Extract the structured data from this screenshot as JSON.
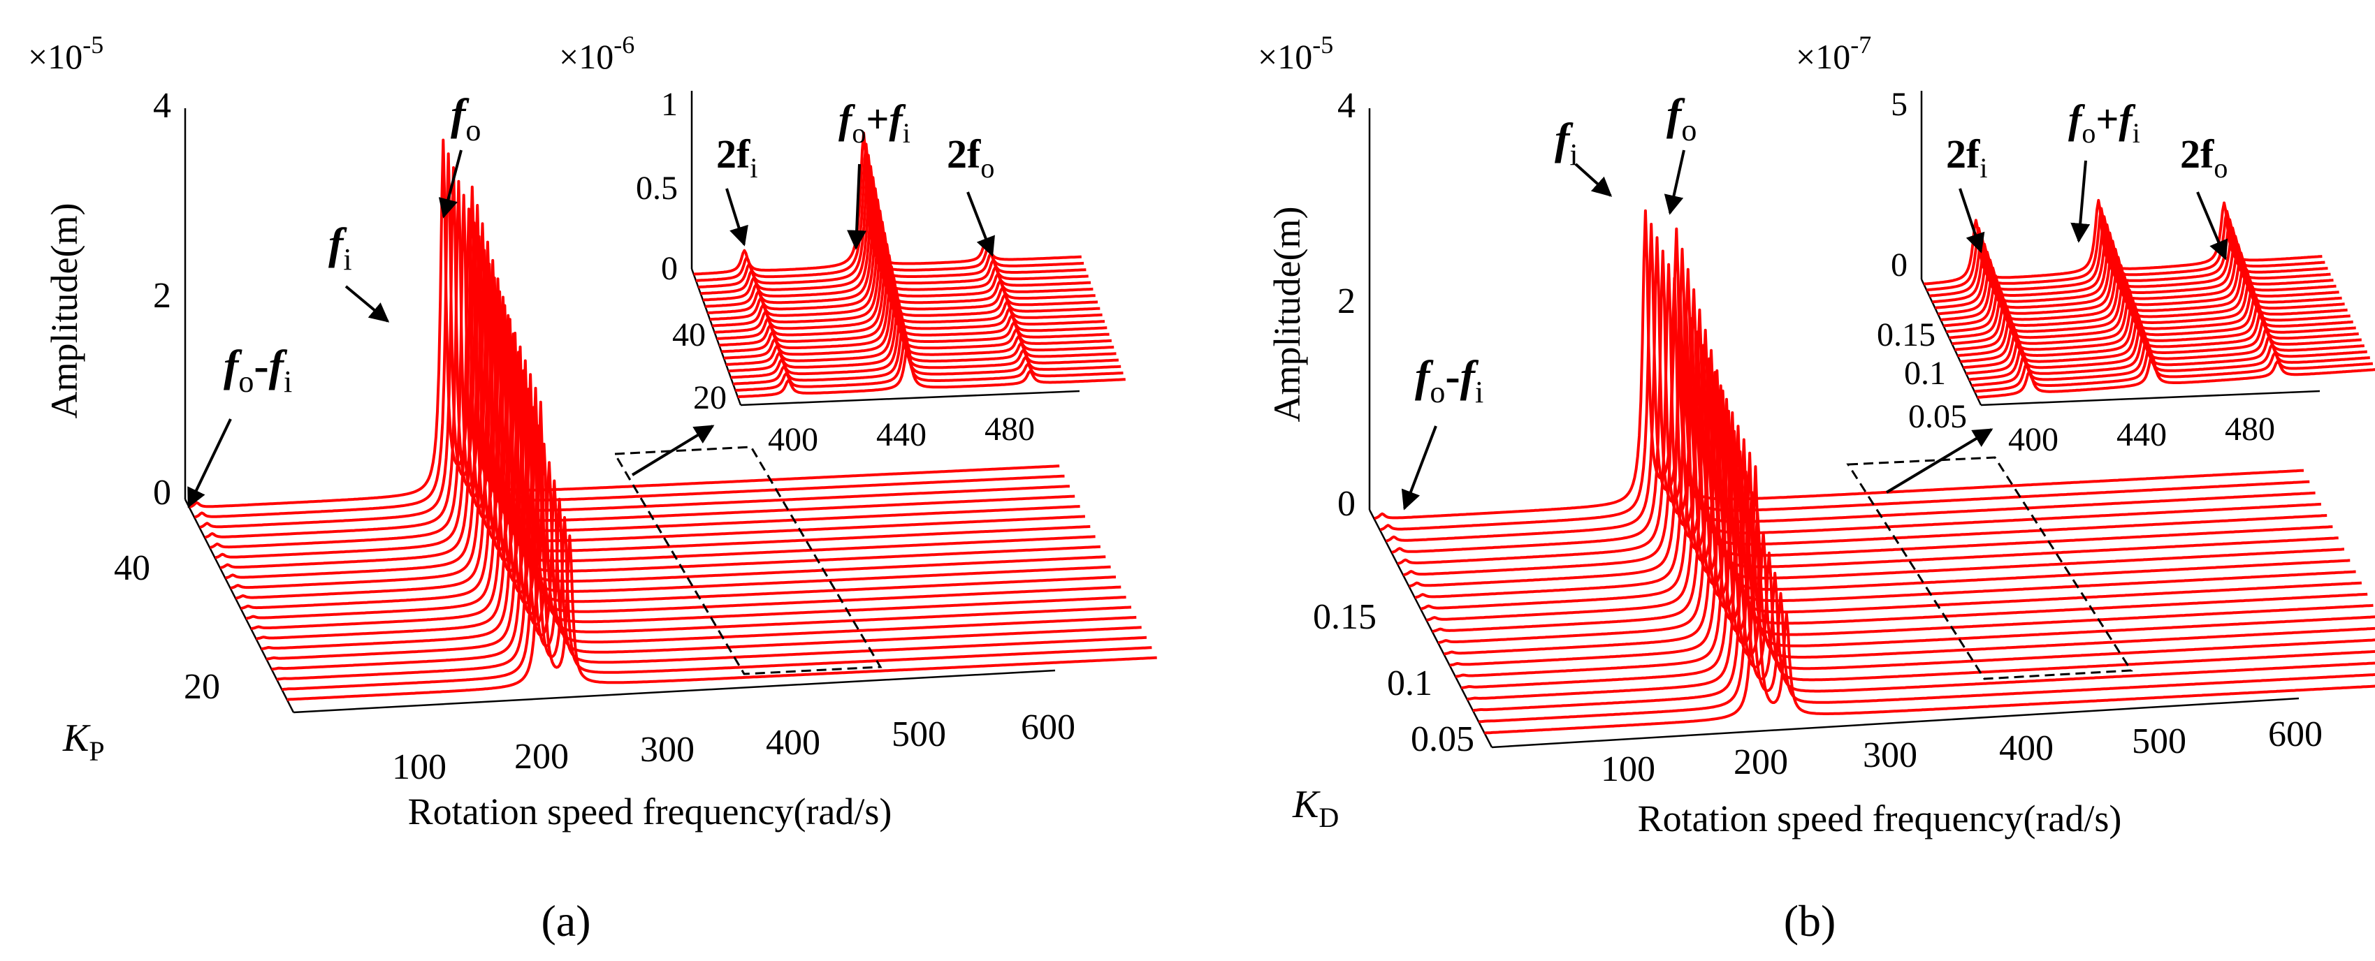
{
  "chart_data": [
    {
      "type": "line",
      "panel_label": "(a)",
      "variant": "a",
      "title": "",
      "xlabel": "Rotation speed frequency(rad/s)",
      "ylabel": "Amplitude(m)",
      "zlabel": "K",
      "zlabel_sub": "P",
      "exponent": "×10-5",
      "exponent_base": "×10",
      "exponent_power": "-5",
      "x_ticks": [
        "100",
        "200",
        "300",
        "400",
        "500",
        "600"
      ],
      "y_ticks": [
        "0",
        "2",
        "4"
      ],
      "z_ticks": [
        "20",
        "40"
      ],
      "xlim": [
        0,
        600
      ],
      "ylim": [
        0,
        4
      ],
      "zlim": [
        10,
        60
      ],
      "series_count": 20,
      "peaks": [
        {
          "name": "fo-fi",
          "x": 5,
          "amplitude_range": [
            0.0,
            0.05
          ]
        },
        {
          "name": "fi",
          "x": 175,
          "amplitude_range": [
            2.9,
            3.6
          ]
        },
        {
          "name": "fo",
          "x": 195,
          "amplitude_range": [
            1.5,
            3.1
          ]
        }
      ],
      "annotations": {
        "fi_main": "f",
        "fi_sub": "i",
        "fo_main": "f",
        "fo_sub": "o",
        "diff_main1": "f",
        "diff_sub1": "o",
        "diff_op": "-",
        "diff_main2": "f",
        "diff_sub2": "i"
      },
      "inset": {
        "exponent_base": "×10",
        "exponent_power": "-6",
        "x_ticks": [
          "400",
          "440",
          "480"
        ],
        "y_ticks": [
          "0",
          "0.5",
          "1"
        ],
        "z_ticks": [
          "20",
          "40"
        ],
        "xlim": [
          370,
          500
        ],
        "ylim": [
          0,
          1
        ],
        "peaks": [
          {
            "name": "2fi",
            "x": 387,
            "amplitude_range": [
              0.08,
              0.12
            ]
          },
          {
            "name": "fo+fi",
            "x": 427,
            "amplitude_range": [
              0.25,
              0.75
            ]
          },
          {
            "name": "2fo",
            "x": 468,
            "amplitude_range": [
              0.07,
              0.12
            ]
          }
        ],
        "annotations": {
          "twofi_num": "2f",
          "twofi_sub": "i",
          "sum_main1": "f",
          "sum_sub1": "o",
          "sum_op": "+",
          "sum_main2": "f",
          "sum_sub2": "i",
          "twofo_num": "2f",
          "twofo_sub": "o"
        }
      }
    },
    {
      "type": "line",
      "panel_label": "(b)",
      "variant": "b",
      "title": "",
      "xlabel": "Rotation speed frequency(rad/s)",
      "ylabel": "Amplitude(m)",
      "zlabel": "K",
      "zlabel_sub": "D",
      "exponent": "×10-5",
      "exponent_base": "×10",
      "exponent_power": "-5",
      "x_ticks": [
        "100",
        "200",
        "300",
        "400",
        "500",
        "600"
      ],
      "y_ticks": [
        "0",
        "2",
        "4"
      ],
      "z_ticks": [
        "0.05",
        "0.1",
        "0.15"
      ],
      "xlim": [
        0,
        600
      ],
      "ylim": [
        0,
        4
      ],
      "zlim": [
        0.03,
        0.2
      ],
      "series_count": 20,
      "peaks": [
        {
          "name": "fo-fi",
          "x": 5,
          "amplitude_range": [
            0.0,
            0.05
          ]
        },
        {
          "name": "fi",
          "x": 175,
          "amplitude_range": [
            2.5,
            2.9
          ]
        },
        {
          "name": "fo",
          "x": 195,
          "amplitude_range": [
            1.0,
            2.7
          ]
        }
      ],
      "annotations": {
        "fi_main": "f",
        "fi_sub": "i",
        "fo_main": "f",
        "fo_sub": "o",
        "diff_main1": "f",
        "diff_sub1": "o",
        "diff_op": "-",
        "diff_main2": "f",
        "diff_sub2": "i"
      },
      "inset": {
        "exponent_base": "×10",
        "exponent_power": "-7",
        "x_ticks": [
          "400",
          "440",
          "480"
        ],
        "y_ticks": [
          "0",
          "5"
        ],
        "z_ticks": [
          "0.05",
          "0.1",
          "0.15"
        ],
        "xlim": [
          370,
          500
        ],
        "ylim": [
          0,
          5
        ],
        "peaks": [
          {
            "name": "2fi",
            "x": 387,
            "amplitude_range": [
              0.6,
              1.6
            ]
          },
          {
            "name": "fo+fi",
            "x": 427,
            "amplitude_range": [
              0.8,
              1.9
            ]
          },
          {
            "name": "2fo",
            "x": 468,
            "amplitude_range": [
              0.4,
              1.6
            ]
          }
        ],
        "annotations": {
          "twofi_num": "2f",
          "twofi_sub": "i",
          "sum_main1": "f",
          "sum_sub1": "o",
          "sum_op": "+",
          "sum_main2": "f",
          "sum_sub2": "i",
          "twofo_num": "2f",
          "twofo_sub": "o"
        }
      }
    }
  ]
}
